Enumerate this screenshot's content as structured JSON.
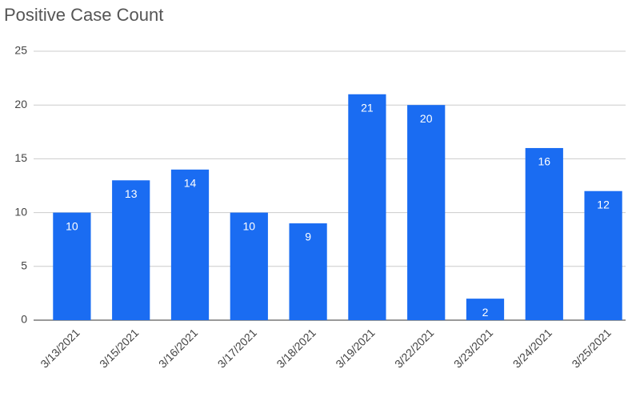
{
  "chart_data": {
    "type": "bar",
    "title": "Positive Case Count",
    "categories": [
      "3/13/2021",
      "3/15/2021",
      "3/16/2021",
      "3/17/2021",
      "3/18/2021",
      "3/19/2021",
      "3/22/2021",
      "3/23/2021",
      "3/24/2021",
      "3/25/2021"
    ],
    "values": [
      10,
      13,
      14,
      10,
      9,
      21,
      20,
      2,
      16,
      12
    ],
    "color": "#1a6cf2",
    "ylim": [
      0,
      25
    ],
    "yticks": [
      0,
      5,
      10,
      15,
      20,
      25
    ],
    "grid": true
  }
}
